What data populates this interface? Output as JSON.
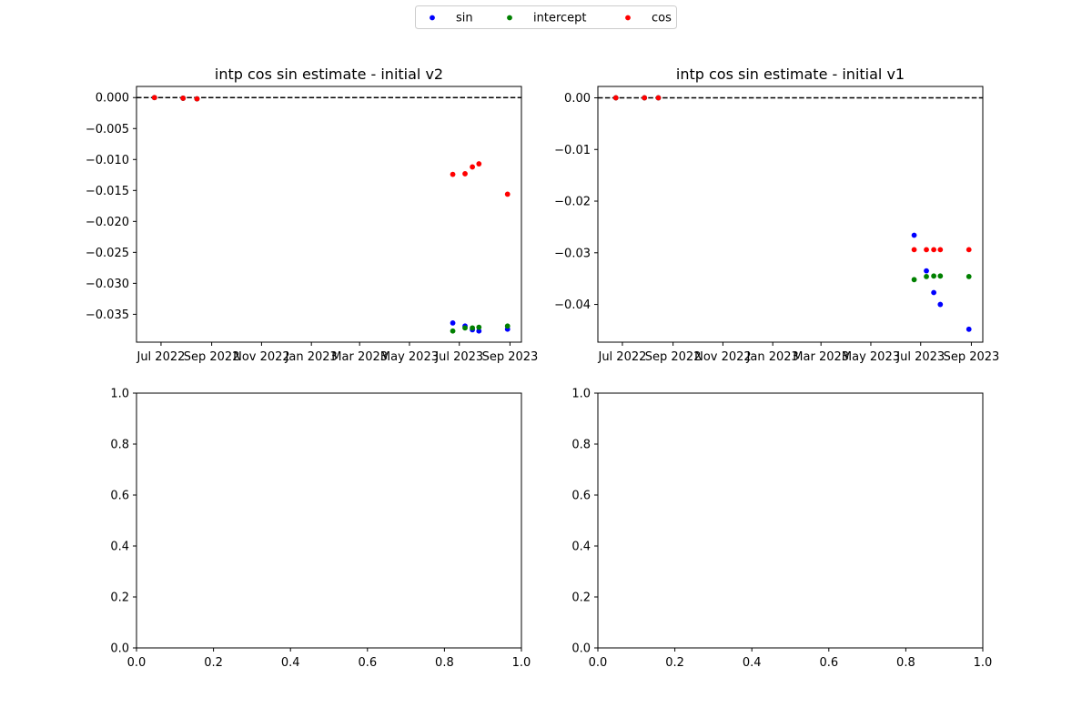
{
  "legend": {
    "placement": "top-center",
    "entries": [
      {
        "label": "sin",
        "color": "#0000ff"
      },
      {
        "label": "intercept",
        "color": "#008000"
      },
      {
        "label": "cos",
        "color": "#ff0000"
      }
    ]
  },
  "chart_data": [
    {
      "type": "scatter",
      "title": "intp cos sin estimate - initial v2",
      "xaxis": {
        "scale": "date",
        "range": [
          "2022-06-01",
          "2023-09-15"
        ],
        "ticks": [
          "2022-07-01",
          "2022-09-01",
          "2022-11-01",
          "2023-01-01",
          "2023-03-01",
          "2023-05-01",
          "2023-07-01",
          "2023-09-01"
        ],
        "tick_labels": [
          "Jul 2022",
          "Sep 2022",
          "Nov 2022",
          "Jan 2023",
          "Mar 2023",
          "May 2023",
          "Jul 2023",
          "Sep 2023"
        ]
      },
      "yaxis": {
        "range": [
          -0.0395,
          0.0018
        ],
        "ticks": [
          0.0,
          -0.005,
          -0.01,
          -0.015,
          -0.02,
          -0.025,
          -0.03,
          -0.035
        ],
        "tick_labels": [
          "0.000",
          "−0.005",
          "−0.010",
          "−0.015",
          "−0.020",
          "−0.025",
          "−0.030",
          "−0.035"
        ]
      },
      "reference_line": {
        "y": 0,
        "style": "dashed",
        "color": "#000000"
      },
      "series": [
        {
          "name": "sin",
          "color": "#0000ff",
          "points": [
            {
              "x": "2022-06-23",
              "y": 0.0
            },
            {
              "x": "2022-07-28",
              "y": -0.0001
            },
            {
              "x": "2022-08-14",
              "y": -0.0002
            },
            {
              "x": "2023-06-23",
              "y": -0.0364
            },
            {
              "x": "2023-07-08",
              "y": -0.0369
            },
            {
              "x": "2023-07-17",
              "y": -0.0375
            },
            {
              "x": "2023-07-25",
              "y": -0.0377
            },
            {
              "x": "2023-08-29",
              "y": -0.0374
            }
          ]
        },
        {
          "name": "intercept",
          "color": "#008000",
          "points": [
            {
              "x": "2022-06-23",
              "y": 0.0
            },
            {
              "x": "2022-07-28",
              "y": -0.0001
            },
            {
              "x": "2022-08-14",
              "y": -0.0002
            },
            {
              "x": "2023-06-23",
              "y": -0.0377
            },
            {
              "x": "2023-07-08",
              "y": -0.0372
            },
            {
              "x": "2023-07-17",
              "y": -0.0372
            },
            {
              "x": "2023-07-25",
              "y": -0.0371
            },
            {
              "x": "2023-08-29",
              "y": -0.0369
            }
          ]
        },
        {
          "name": "cos",
          "color": "#ff0000",
          "points": [
            {
              "x": "2022-06-23",
              "y": 0.0
            },
            {
              "x": "2022-07-28",
              "y": -0.0001
            },
            {
              "x": "2022-08-14",
              "y": -0.0002
            },
            {
              "x": "2023-06-23",
              "y": -0.0124
            },
            {
              "x": "2023-07-08",
              "y": -0.0123
            },
            {
              "x": "2023-07-17",
              "y": -0.0112
            },
            {
              "x": "2023-07-25",
              "y": -0.0107
            },
            {
              "x": "2023-08-29",
              "y": -0.0156
            }
          ]
        }
      ]
    },
    {
      "type": "scatter",
      "title": "intp cos sin estimate - initial v1",
      "xaxis": {
        "scale": "date",
        "range": [
          "2022-06-01",
          "2023-09-15"
        ],
        "ticks": [
          "2022-07-01",
          "2022-09-01",
          "2022-11-01",
          "2023-01-01",
          "2023-03-01",
          "2023-05-01",
          "2023-07-01",
          "2023-09-01"
        ],
        "tick_labels": [
          "Jul 2022",
          "Sep 2022",
          "Nov 2022",
          "Jan 2023",
          "Mar 2023",
          "May 2023",
          "Jul 2023",
          "Sep 2023"
        ]
      },
      "yaxis": {
        "range": [
          -0.0473,
          0.0022
        ],
        "ticks": [
          0.0,
          -0.01,
          -0.02,
          -0.03,
          -0.04
        ],
        "tick_labels": [
          "0.00",
          "−0.01",
          "−0.02",
          "−0.03",
          "−0.04"
        ]
      },
      "reference_line": {
        "y": 0,
        "style": "dashed",
        "color": "#000000"
      },
      "series": [
        {
          "name": "sin",
          "color": "#0000ff",
          "points": [
            {
              "x": "2022-06-23",
              "y": 0.0
            },
            {
              "x": "2022-07-28",
              "y": 0.0
            },
            {
              "x": "2022-08-14",
              "y": 0.0
            },
            {
              "x": "2023-06-23",
              "y": -0.0266
            },
            {
              "x": "2023-07-08",
              "y": -0.0335
            },
            {
              "x": "2023-07-17",
              "y": -0.0377
            },
            {
              "x": "2023-07-25",
              "y": -0.04
            },
            {
              "x": "2023-08-29",
              "y": -0.0448
            }
          ]
        },
        {
          "name": "intercept",
          "color": "#008000",
          "points": [
            {
              "x": "2022-06-23",
              "y": 0.0
            },
            {
              "x": "2022-07-28",
              "y": 0.0
            },
            {
              "x": "2022-08-14",
              "y": 0.0
            },
            {
              "x": "2023-06-23",
              "y": -0.0352
            },
            {
              "x": "2023-07-08",
              "y": -0.0346
            },
            {
              "x": "2023-07-17",
              "y": -0.0345
            },
            {
              "x": "2023-07-25",
              "y": -0.0345
            },
            {
              "x": "2023-08-29",
              "y": -0.0346
            }
          ]
        },
        {
          "name": "cos",
          "color": "#ff0000",
          "points": [
            {
              "x": "2022-06-23",
              "y": 0.0
            },
            {
              "x": "2022-07-28",
              "y": 0.0
            },
            {
              "x": "2022-08-14",
              "y": 0.0
            },
            {
              "x": "2023-06-23",
              "y": -0.0294
            },
            {
              "x": "2023-07-08",
              "y": -0.0294
            },
            {
              "x": "2023-07-17",
              "y": -0.0294
            },
            {
              "x": "2023-07-25",
              "y": -0.0294
            },
            {
              "x": "2023-08-29",
              "y": -0.0294
            }
          ]
        }
      ]
    },
    {
      "type": "scatter",
      "title": "",
      "xaxis": {
        "scale": "linear",
        "range": [
          0,
          1
        ],
        "ticks": [
          0,
          0.2,
          0.4,
          0.6,
          0.8,
          1.0
        ],
        "tick_labels": [
          "0.0",
          "0.2",
          "0.4",
          "0.6",
          "0.8",
          "1.0"
        ]
      },
      "yaxis": {
        "range": [
          0,
          1
        ],
        "ticks": [
          0,
          0.2,
          0.4,
          0.6,
          0.8,
          1.0
        ],
        "tick_labels": [
          "0.0",
          "0.2",
          "0.4",
          "0.6",
          "0.8",
          "1.0"
        ]
      },
      "series": []
    },
    {
      "type": "scatter",
      "title": "",
      "xaxis": {
        "scale": "linear",
        "range": [
          0,
          1
        ],
        "ticks": [
          0,
          0.2,
          0.4,
          0.6,
          0.8,
          1.0
        ],
        "tick_labels": [
          "0.0",
          "0.2",
          "0.4",
          "0.6",
          "0.8",
          "1.0"
        ]
      },
      "yaxis": {
        "range": [
          0,
          1
        ],
        "ticks": [
          0,
          0.2,
          0.4,
          0.6,
          0.8,
          1.0
        ],
        "tick_labels": [
          "0.0",
          "0.2",
          "0.4",
          "0.6",
          "0.8",
          "1.0"
        ]
      },
      "series": []
    }
  ]
}
